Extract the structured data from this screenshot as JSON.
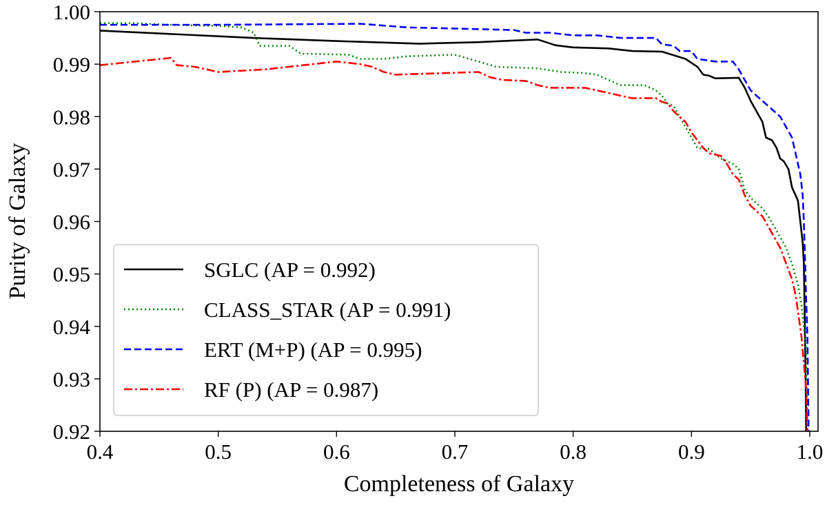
{
  "chart_data": {
    "type": "line",
    "title": "",
    "xlabel": "Completeness of Galaxy",
    "ylabel": "Purity of Galaxy",
    "xlim": [
      0.4,
      1.007
    ],
    "ylim": [
      0.92,
      1.0
    ],
    "xticks": [
      "0.4",
      "0.5",
      "0.6",
      "0.7",
      "0.8",
      "0.9",
      "1.0"
    ],
    "yticks": [
      "0.92",
      "0.93",
      "0.94",
      "0.95",
      "0.96",
      "0.97",
      "0.98",
      "0.99",
      "1.00"
    ],
    "grid": false,
    "legend_position": "lower-left",
    "series": [
      {
        "name": "SGLC (AP = 0.992)",
        "color": "#000000",
        "style": "solid",
        "points": [
          [
            0.4,
            0.9964
          ],
          [
            0.53,
            0.995
          ],
          [
            0.6,
            0.9944
          ],
          [
            0.67,
            0.9939
          ],
          [
            0.72,
            0.9942
          ],
          [
            0.77,
            0.9947
          ],
          [
            0.785,
            0.9936
          ],
          [
            0.8,
            0.9932
          ],
          [
            0.83,
            0.993
          ],
          [
            0.85,
            0.9925
          ],
          [
            0.875,
            0.9924
          ],
          [
            0.895,
            0.991
          ],
          [
            0.905,
            0.9895
          ],
          [
            0.91,
            0.988
          ],
          [
            0.915,
            0.9878
          ],
          [
            0.92,
            0.9873
          ],
          [
            0.94,
            0.9874
          ],
          [
            0.945,
            0.9855
          ],
          [
            0.95,
            0.983
          ],
          [
            0.955,
            0.981
          ],
          [
            0.96,
            0.979
          ],
          [
            0.963,
            0.976
          ],
          [
            0.968,
            0.9755
          ],
          [
            0.972,
            0.974
          ],
          [
            0.975,
            0.972
          ],
          [
            0.978,
            0.9715
          ],
          [
            0.982,
            0.97
          ],
          [
            0.985,
            0.9665
          ],
          [
            0.988,
            0.965
          ],
          [
            0.99,
            0.964
          ],
          [
            0.992,
            0.96
          ],
          [
            0.994,
            0.956
          ],
          [
            0.995,
            0.952
          ],
          [
            0.9955,
            0.945
          ],
          [
            0.996,
            0.938
          ],
          [
            0.9965,
            0.93
          ],
          [
            0.997,
            0.92
          ]
        ]
      },
      {
        "name": "CLASS_STAR (AP = 0.991)",
        "color": "#008000",
        "style": "dotted",
        "points": [
          [
            0.4,
            0.9978
          ],
          [
            0.43,
            0.9978
          ],
          [
            0.46,
            0.9975
          ],
          [
            0.5,
            0.9973
          ],
          [
            0.52,
            0.997
          ],
          [
            0.53,
            0.996
          ],
          [
            0.535,
            0.9935
          ],
          [
            0.56,
            0.9935
          ],
          [
            0.57,
            0.992
          ],
          [
            0.61,
            0.9918
          ],
          [
            0.62,
            0.991
          ],
          [
            0.64,
            0.991
          ],
          [
            0.66,
            0.9915
          ],
          [
            0.7,
            0.9918
          ],
          [
            0.72,
            0.9905
          ],
          [
            0.735,
            0.9895
          ],
          [
            0.77,
            0.9892
          ],
          [
            0.79,
            0.9885
          ],
          [
            0.81,
            0.9883
          ],
          [
            0.82,
            0.988
          ],
          [
            0.83,
            0.987
          ],
          [
            0.84,
            0.986
          ],
          [
            0.86,
            0.986
          ],
          [
            0.87,
            0.985
          ],
          [
            0.875,
            0.984
          ],
          [
            0.88,
            0.9825
          ],
          [
            0.885,
            0.982
          ],
          [
            0.89,
            0.98
          ],
          [
            0.895,
            0.978
          ],
          [
            0.9,
            0.976
          ],
          [
            0.905,
            0.974
          ],
          [
            0.915,
            0.9738
          ],
          [
            0.925,
            0.972
          ],
          [
            0.935,
            0.971
          ],
          [
            0.94,
            0.97
          ],
          [
            0.945,
            0.966
          ],
          [
            0.95,
            0.9645
          ],
          [
            0.955,
            0.9635
          ],
          [
            0.96,
            0.9625
          ],
          [
            0.965,
            0.961
          ],
          [
            0.97,
            0.959
          ],
          [
            0.975,
            0.957
          ],
          [
            0.98,
            0.955
          ],
          [
            0.985,
            0.952
          ],
          [
            0.99,
            0.948
          ],
          [
            0.993,
            0.944
          ],
          [
            0.995,
            0.94
          ],
          [
            0.997,
            0.935
          ],
          [
            0.998,
            0.92
          ]
        ]
      },
      {
        "name": "ERT (M+P) (AP = 0.995)",
        "color": "#0000ff",
        "style": "dashed",
        "points": [
          [
            0.4,
            0.9975
          ],
          [
            0.5,
            0.9975
          ],
          [
            0.62,
            0.9977
          ],
          [
            0.66,
            0.997
          ],
          [
            0.7,
            0.9968
          ],
          [
            0.75,
            0.9965
          ],
          [
            0.76,
            0.996
          ],
          [
            0.78,
            0.996
          ],
          [
            0.8,
            0.9955
          ],
          [
            0.82,
            0.9955
          ],
          [
            0.84,
            0.995
          ],
          [
            0.87,
            0.995
          ],
          [
            0.875,
            0.9938
          ],
          [
            0.885,
            0.9935
          ],
          [
            0.89,
            0.9925
          ],
          [
            0.9,
            0.9925
          ],
          [
            0.905,
            0.991
          ],
          [
            0.92,
            0.9905
          ],
          [
            0.935,
            0.9905
          ],
          [
            0.94,
            0.989
          ],
          [
            0.945,
            0.987
          ],
          [
            0.95,
            0.985
          ],
          [
            0.955,
            0.984
          ],
          [
            0.96,
            0.983
          ],
          [
            0.965,
            0.982
          ],
          [
            0.97,
            0.981
          ],
          [
            0.975,
            0.98
          ],
          [
            0.98,
            0.978
          ],
          [
            0.985,
            0.976
          ],
          [
            0.988,
            0.973
          ],
          [
            0.99,
            0.971
          ],
          [
            0.992,
            0.969
          ],
          [
            0.994,
            0.965
          ],
          [
            0.995,
            0.96
          ],
          [
            0.996,
            0.953
          ],
          [
            0.997,
            0.945
          ],
          [
            0.998,
            0.938
          ],
          [
            0.9985,
            0.93
          ],
          [
            0.999,
            0.92
          ]
        ]
      },
      {
        "name": "RF (P) (AP = 0.987)",
        "color": "#ff0000",
        "style": "dashdot",
        "points": [
          [
            0.4,
            0.9898
          ],
          [
            0.43,
            0.9905
          ],
          [
            0.46,
            0.9912
          ],
          [
            0.465,
            0.9898
          ],
          [
            0.48,
            0.9895
          ],
          [
            0.49,
            0.989
          ],
          [
            0.5,
            0.9885
          ],
          [
            0.54,
            0.989
          ],
          [
            0.58,
            0.99
          ],
          [
            0.6,
            0.9905
          ],
          [
            0.62,
            0.99
          ],
          [
            0.63,
            0.9895
          ],
          [
            0.64,
            0.9885
          ],
          [
            0.65,
            0.988
          ],
          [
            0.72,
            0.9885
          ],
          [
            0.73,
            0.9875
          ],
          [
            0.74,
            0.987
          ],
          [
            0.76,
            0.9868
          ],
          [
            0.77,
            0.986
          ],
          [
            0.78,
            0.9855
          ],
          [
            0.81,
            0.9855
          ],
          [
            0.82,
            0.985
          ],
          [
            0.83,
            0.9845
          ],
          [
            0.84,
            0.984
          ],
          [
            0.85,
            0.9835
          ],
          [
            0.87,
            0.9835
          ],
          [
            0.875,
            0.9828
          ],
          [
            0.88,
            0.9825
          ],
          [
            0.885,
            0.981
          ],
          [
            0.89,
            0.98
          ],
          [
            0.895,
            0.979
          ],
          [
            0.9,
            0.977
          ],
          [
            0.905,
            0.9755
          ],
          [
            0.91,
            0.974
          ],
          [
            0.915,
            0.973
          ],
          [
            0.925,
            0.9725
          ],
          [
            0.93,
            0.971
          ],
          [
            0.935,
            0.969
          ],
          [
            0.94,
            0.968
          ],
          [
            0.945,
            0.965
          ],
          [
            0.95,
            0.963
          ],
          [
            0.955,
            0.962
          ],
          [
            0.96,
            0.961
          ],
          [
            0.965,
            0.959
          ],
          [
            0.97,
            0.957
          ],
          [
            0.975,
            0.955
          ],
          [
            0.98,
            0.952
          ],
          [
            0.985,
            0.949
          ],
          [
            0.988,
            0.946
          ],
          [
            0.99,
            0.943
          ],
          [
            0.993,
            0.938
          ],
          [
            0.995,
            0.933
          ],
          [
            0.997,
            0.928
          ],
          [
            0.998,
            0.92
          ]
        ]
      }
    ]
  }
}
